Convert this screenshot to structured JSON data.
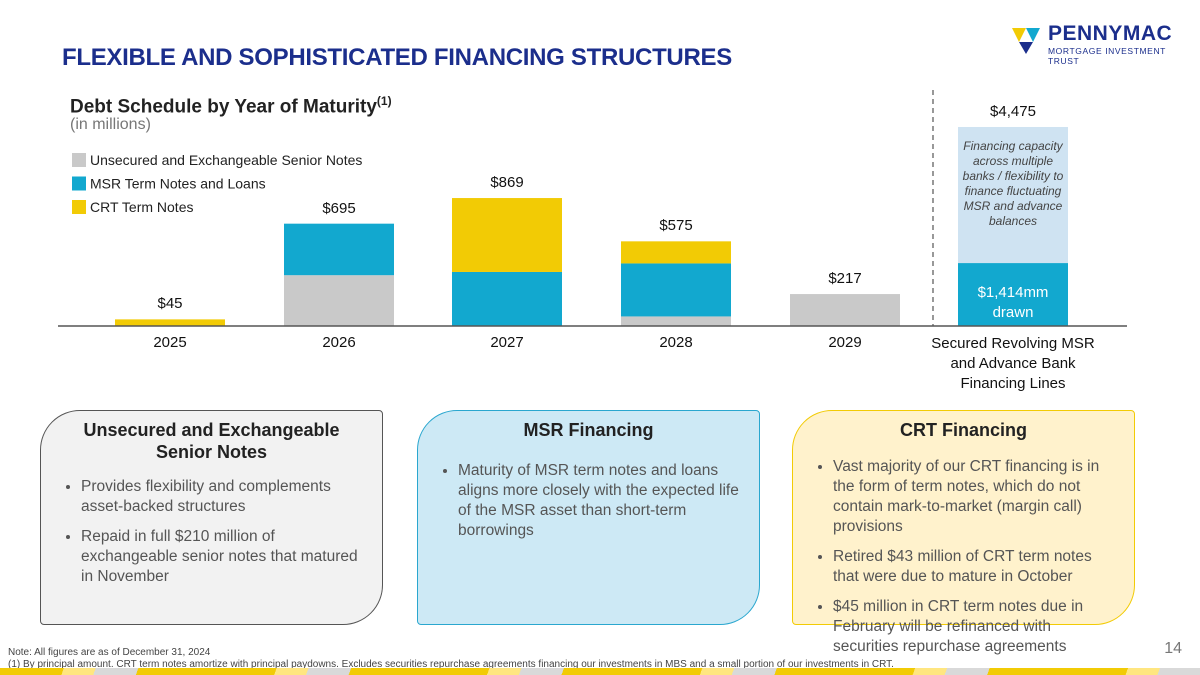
{
  "header": {
    "title": "FLEXIBLE AND SOPHISTICATED FINANCING STRUCTURES",
    "logo_name": "PENNYMAC",
    "logo_sub": "MORTGAGE INVESTMENT TRUST"
  },
  "chart_data": [
    {
      "type": "stacked-bar",
      "title": "Debt Schedule by Year of Maturity",
      "title_note": "(1)",
      "subtitle": "(in millions)",
      "categories": [
        "2025",
        "2026",
        "2027",
        "2028",
        "2029"
      ],
      "series": [
        {
          "name": "Unsecured and Exchangeable Senior Notes",
          "color": "#c9c9c9",
          "values": [
            0,
            345,
            0,
            65,
            217
          ]
        },
        {
          "name": "MSR Term Notes and Loans",
          "color": "#12a8cf",
          "values": [
            0,
            350,
            367,
            360,
            0
          ]
        },
        {
          "name": "CRT Term Notes",
          "color": "#f2cb05",
          "values": [
            45,
            0,
            502,
            150,
            0
          ]
        }
      ],
      "totals": [
        45,
        695,
        869,
        575,
        217
      ],
      "total_labels": [
        "$45",
        "$695",
        "$869",
        "$575",
        "$217"
      ],
      "ylim": [
        0,
        1467
      ],
      "legend": "top-left"
    },
    {
      "type": "bar",
      "categories": [
        "Secured Revolving MSR and Advance Bank Financing Lines"
      ],
      "values": [
        1414
      ],
      "value_labels": [
        "$1,414mm drawn"
      ],
      "color": "#12a8cf",
      "totals": [
        4475
      ],
      "total_labels": [
        "$4,475"
      ],
      "total_color": "#cfe3f2",
      "annotation": "Financing capacity across multiple banks / flexibility to finance fluctuating MSR and advance balances",
      "ylim": [
        0,
        4857
      ]
    }
  ],
  "panels": [
    {
      "title": "Unsecured and Exchangeable Senior Notes",
      "bullets": [
        "Provides flexibility and complements asset-backed structures",
        "Repaid in full $210 million of exchangeable senior notes that matured in November"
      ]
    },
    {
      "title": "MSR Financing",
      "bullets": [
        "Maturity of MSR term notes and loans aligns more closely with the expected life of the MSR asset than short-term borrowings"
      ]
    },
    {
      "title": "CRT Financing",
      "bullets": [
        "Vast majority of our CRT financing is in the form of term notes, which do not contain mark-to-market (margin call) provisions",
        "Retired $43 million of CRT term notes that were due to mature in October",
        "$45 million in CRT term notes due in February will be refinanced with securities repurchase agreements"
      ]
    }
  ],
  "footer": {
    "note": "Note: All figures are as of December 31, 2024",
    "footnote": "(1) By principal amount. CRT term notes amortize with principal paydowns. Excludes securities repurchase agreements financing our investments in MBS and a small portion of our investments in CRT.",
    "page": "14"
  }
}
